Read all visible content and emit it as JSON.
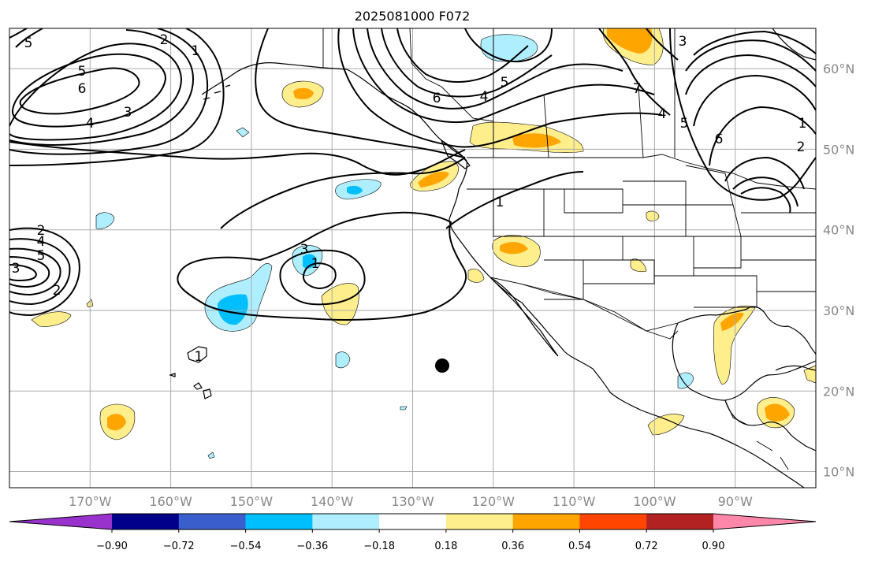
{
  "title": "2025081000 F072",
  "longitude_labels": [
    "170°W",
    "160°W",
    "150°W",
    "140°W",
    "130°W",
    "120°W",
    "110°W",
    "100°W",
    "90°W"
  ],
  "latitude_labels": [
    "60°N",
    "50°N",
    "40°N",
    "30°N",
    "20°N",
    "10°N"
  ],
  "colorbar": {
    "tick_labels": [
      "−0.90",
      "−0.72",
      "−0.54",
      "−0.36",
      "−0.18",
      "0.18",
      "0.36",
      "0.54",
      "0.72",
      "0.90"
    ],
    "colors": [
      "#9932cc",
      "#00008b",
      "#3a5fcd",
      "#00bfff",
      "#afeeff",
      "#ffffff",
      "#ffee8c",
      "#ffa500",
      "#ff4500",
      "#b22222",
      "#ff88aa"
    ]
  },
  "contour_labels": [
    "5",
    "2",
    "1",
    "5",
    "6",
    "4",
    "3",
    "6",
    "4",
    "5",
    "7",
    "6",
    "5",
    "4",
    "3",
    "2",
    "1",
    "1",
    "2",
    "4",
    "5",
    "3",
    "2",
    "3",
    "1",
    "1"
  ],
  "marker": "storm-center-dot",
  "chart_data": {
    "type": "map",
    "projection": "PlateCarree",
    "lon_range": [
      -180,
      -80
    ],
    "lat_range": [
      8,
      65
    ],
    "contour_levels_visible": [
      1,
      2,
      3,
      4,
      5,
      6,
      7
    ],
    "shading_levels": [
      -0.9,
      -0.72,
      -0.54,
      -0.36,
      -0.18,
      0.18,
      0.36,
      0.54,
      0.72,
      0.9
    ],
    "marker_point": {
      "lon": -126,
      "lat": 23
    }
  }
}
